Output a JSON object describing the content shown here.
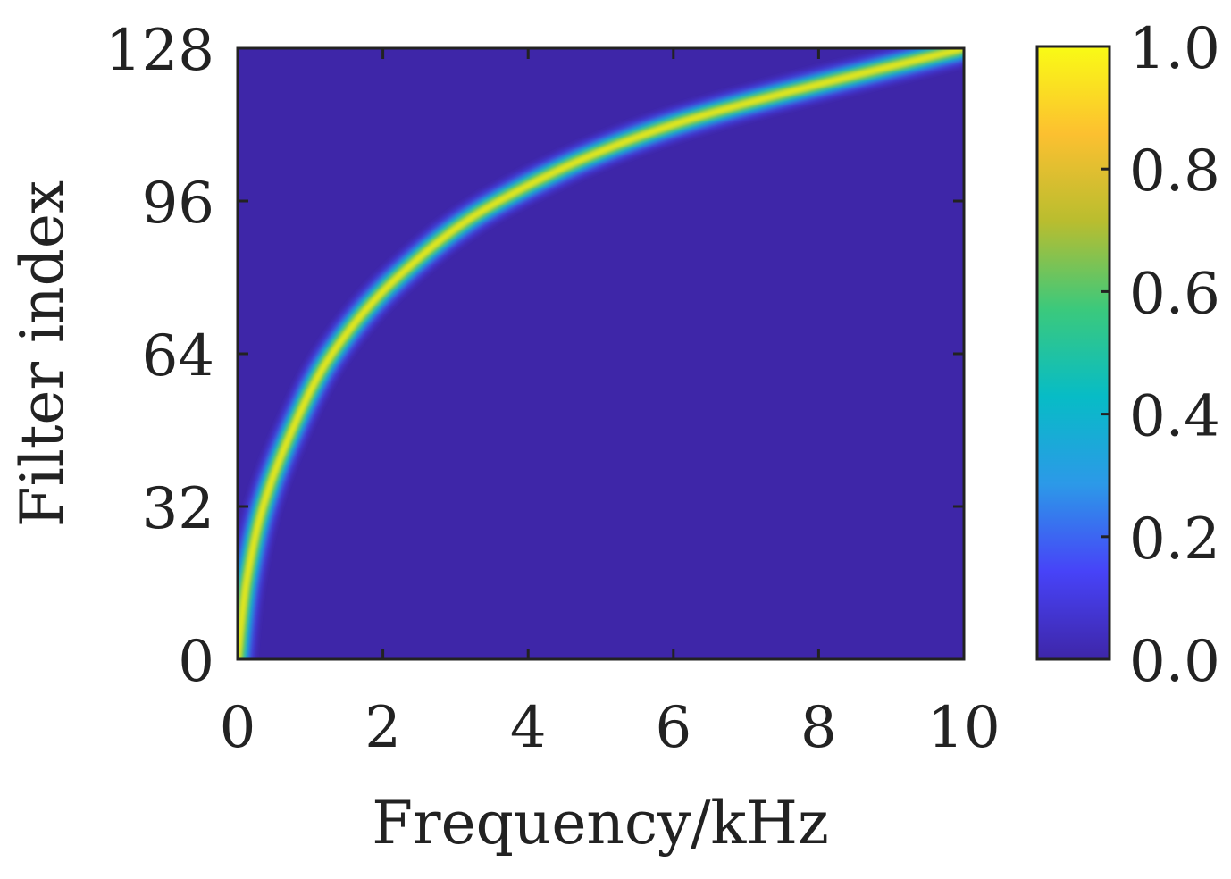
{
  "chart_data": {
    "type": "heatmap",
    "title": "",
    "xlabel": "Frequency/kHz",
    "ylabel": "Filter index",
    "xlim": [
      0,
      10
    ],
    "ylim": [
      0,
      128
    ],
    "x_ticks": [
      "0",
      "2",
      "4",
      "6",
      "8",
      "10"
    ],
    "x_tick_values": [
      0,
      2,
      4,
      6,
      8,
      10
    ],
    "y_ticks": [
      "0",
      "32",
      "64",
      "96",
      "128"
    ],
    "y_tick_values": [
      0,
      32,
      64,
      96,
      128
    ],
    "colorbar": {
      "range": [
        0,
        1
      ],
      "ticks": [
        "0.0",
        "0.2",
        "0.4",
        "0.6",
        "0.8",
        "1.0"
      ],
      "tick_values": [
        0,
        0.2,
        0.4,
        0.6,
        0.8,
        1.0
      ],
      "colormap": "parula",
      "colors": [
        "#3e26a8",
        "#4743f8",
        "#2c99e8",
        "#07bcc6",
        "#3bc97c",
        "#b9bd2f",
        "#fcc030",
        "#f9fb15"
      ]
    },
    "curve": {
      "description_free_points_filter_index_vs_center_frequency_khz": true,
      "points": [
        {
          "filter": 0,
          "frequency_khz": 0.0
        },
        {
          "filter": 16,
          "frequency_khz": 0.12
        },
        {
          "filter": 32,
          "frequency_khz": 0.35
        },
        {
          "filter": 48,
          "frequency_khz": 0.75
        },
        {
          "filter": 64,
          "frequency_khz": 1.3
        },
        {
          "filter": 80,
          "frequency_khz": 2.2
        },
        {
          "filter": 96,
          "frequency_khz": 3.6
        },
        {
          "filter": 112,
          "frequency_khz": 6.0
        },
        {
          "filter": 128,
          "frequency_khz": 10.0
        }
      ]
    },
    "grid": false,
    "legend": "none"
  }
}
